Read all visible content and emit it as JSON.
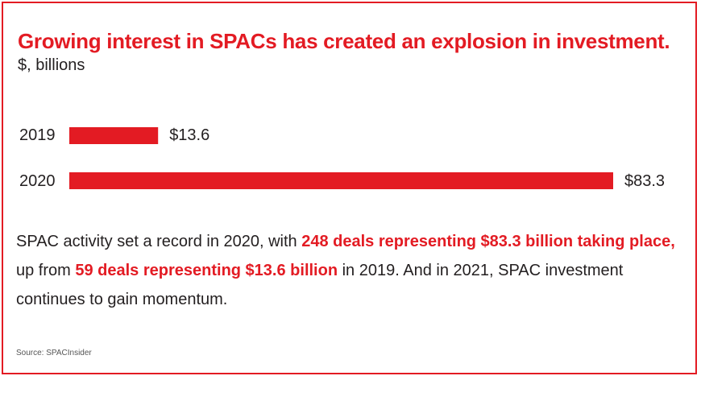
{
  "header": {
    "title": "Growing interest in SPACs has created an explosion in investment.",
    "subtitle": "$, billions"
  },
  "chart_data": {
    "type": "bar",
    "orientation": "horizontal",
    "categories": [
      "2019",
      "2020"
    ],
    "values": [
      13.6,
      83.3
    ],
    "value_labels": [
      "$13.6",
      "$83.3"
    ],
    "title": "Growing interest in SPACs has created an explosion in investment.",
    "ylabel": "$, billions",
    "xlim": [
      0,
      83.3
    ],
    "grid": false,
    "legend": "none",
    "bar_color": "#e31b23"
  },
  "body": {
    "t1": "SPAC activity set a record in 2020, with ",
    "h1": "248 deals representing $83.3 billion taking place,",
    "t2": " up from ",
    "h2": "59 deals representing $13.6 billion",
    "t3": " in 2019. And in 2021, SPAC investment continues to gain momentum."
  },
  "source": "Source: SPACInsider",
  "colors": {
    "accent": "#e31b23",
    "text": "#231f20"
  }
}
